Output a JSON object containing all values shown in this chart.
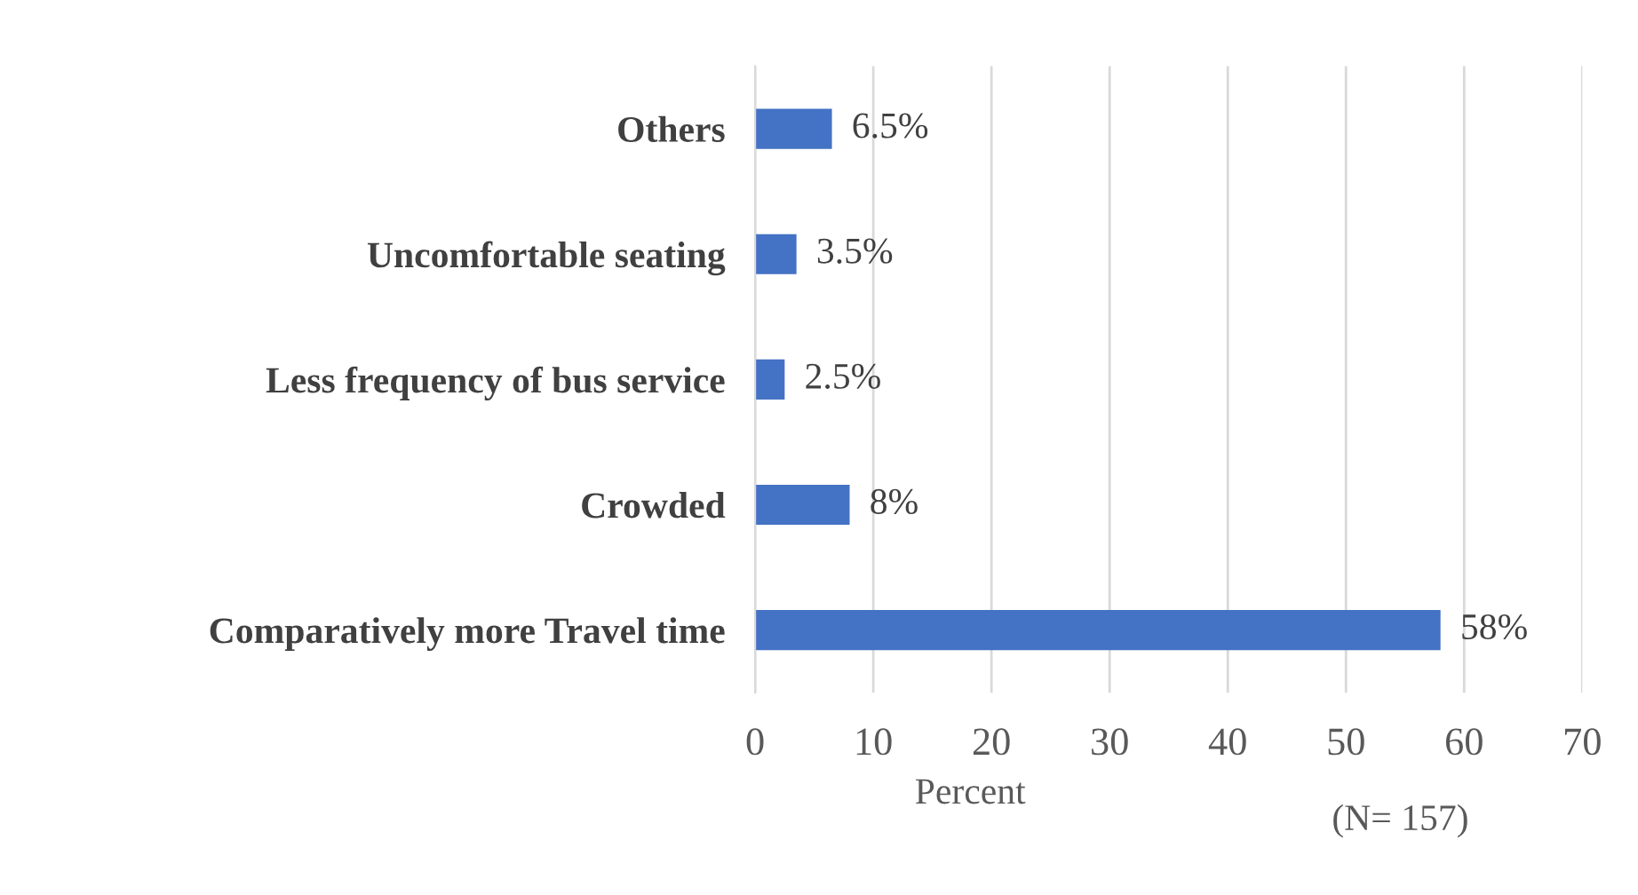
{
  "chart_data": {
    "type": "bar",
    "orientation": "horizontal",
    "categories": [
      "Others",
      "Uncomfortable seating",
      "Less frequency of bus service",
      "Crowded",
      "Comparatively more Travel time"
    ],
    "values": [
      6.5,
      3.5,
      2.5,
      8,
      58
    ],
    "value_labels": [
      "6.5%",
      "3.5%",
      "2.5%",
      "8%",
      "58%"
    ],
    "color": "#4472c4",
    "xlim": [
      0,
      70
    ],
    "xticks": [
      0,
      10,
      20,
      30,
      40,
      50,
      60,
      70
    ],
    "grid": "x",
    "legend": false,
    "xlabel": "Percent",
    "annotations": [
      "(N= 157)"
    ]
  }
}
